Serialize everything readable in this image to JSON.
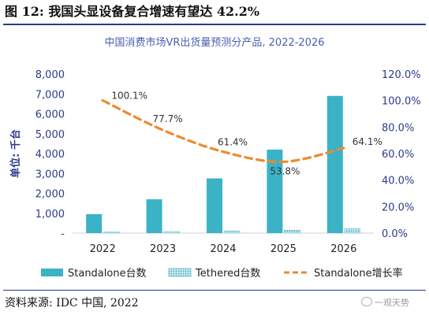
{
  "figure": {
    "title": "图 12:  我国头显设备复合增速有望达 42.2%",
    "source": "资料来源:  IDC 中国,  2022",
    "watermark": "一观天势"
  },
  "colors": {
    "standalone_bar": "#3bb2c6",
    "tethered_bar": "#bfe6ee",
    "growth_line": "#ee8a2e",
    "axis_text": "#2d3a8a",
    "title_text": "#4a5fb0"
  },
  "chart_data": {
    "type": "bar",
    "title": "中国消费市场VR出货量预测分产品, 2022-2026",
    "ylabel": "单位: 千台",
    "categories": [
      "2022",
      "2023",
      "2024",
      "2025",
      "2026"
    ],
    "ylim": [
      0,
      8000
    ],
    "y_ticks": [
      "-",
      "1,000",
      "2,000",
      "3,000",
      "4,000",
      "5,000",
      "6,000",
      "7,000",
      "8,000"
    ],
    "y2lim": [
      0,
      120
    ],
    "y2_ticks": [
      "0.0%",
      "20.0%",
      "40.0%",
      "60.0%",
      "80.0%",
      "100.0%",
      "120.0%"
    ],
    "grid": false,
    "legend_position": "bottom",
    "series": [
      {
        "name": "Standalone台数",
        "kind": "bar",
        "values": [
          950,
          1700,
          2750,
          4200,
          6900
        ]
      },
      {
        "name": "Tethered台数",
        "kind": "bar-hatched",
        "values": [
          60,
          80,
          110,
          150,
          220
        ]
      },
      {
        "name": "Standalone增长率",
        "kind": "line-dashed",
        "axis": "right",
        "values": [
          100.1,
          77.7,
          61.4,
          53.8,
          64.1
        ],
        "labels": [
          "100.1%",
          "77.7%",
          "61.4%",
          "53.8%",
          "64.1%"
        ]
      }
    ]
  }
}
